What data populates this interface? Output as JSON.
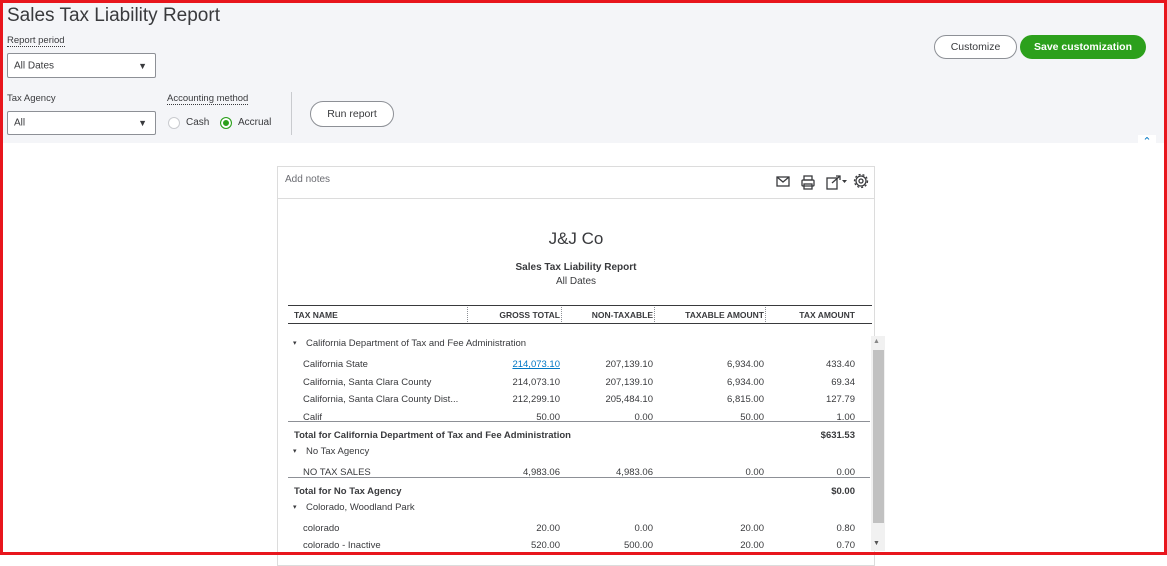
{
  "header": {
    "title": "Sales Tax Liability Report"
  },
  "filters": {
    "report_period": {
      "label": "Report period",
      "value": "All Dates"
    },
    "tax_agency": {
      "label": "Tax Agency",
      "value": "All"
    },
    "accounting_method": {
      "label": "Accounting method",
      "options": [
        "Cash",
        "Accrual"
      ],
      "selected": 1
    }
  },
  "buttons": {
    "run_report": "Run report",
    "customize": "Customize",
    "save_customization": "Save customization"
  },
  "report": {
    "add_notes": "Add notes",
    "company": "J&J Co",
    "title": "Sales Tax Liability Report",
    "period": "All Dates",
    "columns": [
      "TAX NAME",
      "GROSS TOTAL",
      "NON-TAXABLE",
      "TAXABLE AMOUNT",
      "TAX AMOUNT"
    ],
    "groups": [
      {
        "name": "California Department of Tax and Fee Administration",
        "rows": [
          [
            "California State",
            "214,073.10",
            "207,139.10",
            "6,934.00",
            "433.40"
          ],
          [
            "California, Santa Clara County",
            "214,073.10",
            "207,139.10",
            "6,934.00",
            "69.34"
          ],
          [
            "California, Santa Clara County Dist...",
            "212,299.10",
            "205,484.10",
            "6,815.00",
            "127.79"
          ],
          [
            "Calif",
            "50.00",
            "0.00",
            "50.00",
            "1.00"
          ]
        ],
        "total": {
          "label": "Total for California Department of Tax and Fee Administration",
          "value": "$631.53"
        }
      },
      {
        "name": "No Tax Agency",
        "rows": [
          [
            "NO TAX SALES",
            "4,983.06",
            "4,983.06",
            "0.00",
            "0.00"
          ]
        ],
        "total": {
          "label": "Total for No Tax Agency",
          "value": "$0.00"
        }
      },
      {
        "name": "Colorado, Woodland Park",
        "rows": [
          [
            "colorado",
            "20.00",
            "0.00",
            "20.00",
            "0.80"
          ],
          [
            "colorado - Inactive",
            "520.00",
            "500.00",
            "20.00",
            "0.70"
          ]
        ]
      }
    ]
  }
}
